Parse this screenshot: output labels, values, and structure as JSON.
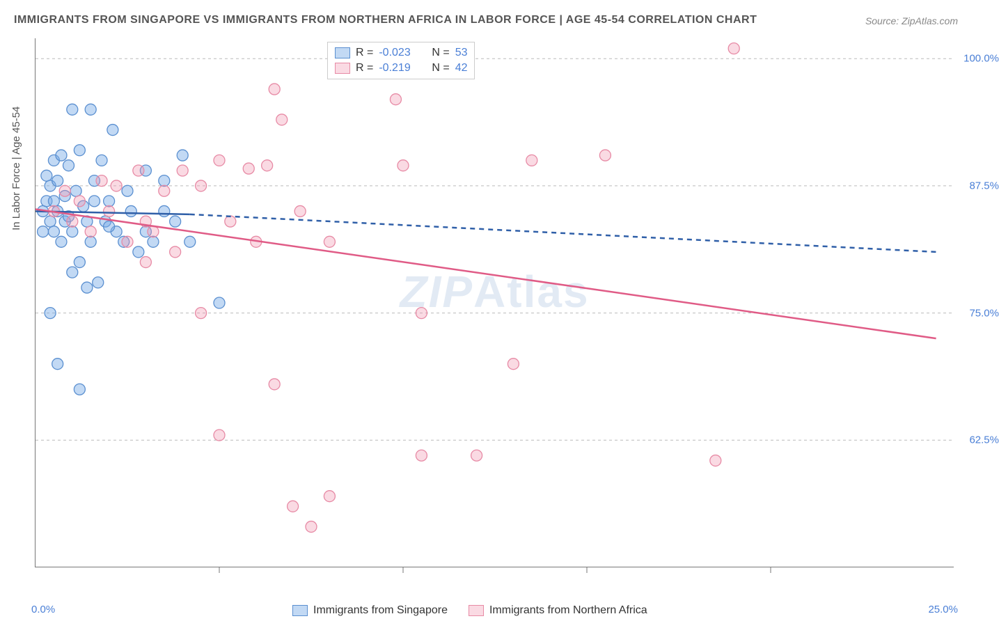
{
  "title": "IMMIGRANTS FROM SINGAPORE VS IMMIGRANTS FROM NORTHERN AFRICA IN LABOR FORCE | AGE 45-54 CORRELATION CHART",
  "source": "Source: ZipAtlas.com",
  "ylabel": "In Labor Force | Age 45-54",
  "watermark_a": "ZIP",
  "watermark_b": "Atlas",
  "title_fontsize": 16,
  "source_fontsize": 14,
  "colors": {
    "blue_fill": "rgba(120,170,230,0.45)",
    "blue_stroke": "#5a8fd0",
    "pink_fill": "rgba(240,150,175,0.35)",
    "pink_stroke": "#e78aa5",
    "line_blue": "#2f5fa8",
    "line_pink": "#e05b86",
    "axis_text": "#4a7fd6"
  },
  "chart": {
    "type": "scatter",
    "xlim": [
      0,
      25
    ],
    "ylim": [
      50,
      102
    ],
    "xticks": [
      5,
      10,
      15,
      20
    ],
    "yticks": [
      62.5,
      75.0,
      87.5,
      100.0
    ],
    "ytick_labels": [
      "62.5%",
      "75.0%",
      "87.5%",
      "100.0%"
    ],
    "xlabel_min": "0.0%",
    "xlabel_max": "25.0%",
    "marker_radius": 8,
    "series": [
      {
        "name": "Immigrants from Singapore",
        "color_key": "blue",
        "R": "-0.023",
        "N": "53",
        "regression": {
          "x1": 0,
          "y1": 85.0,
          "x2": 4.2,
          "y2": 84.7,
          "dash_ext_x2": 24.5,
          "dash_ext_y2": 81.0
        },
        "points": [
          [
            0.2,
            85
          ],
          [
            0.3,
            86
          ],
          [
            0.4,
            84
          ],
          [
            0.4,
            87.5
          ],
          [
            0.5,
            90
          ],
          [
            0.5,
            83
          ],
          [
            0.6,
            88
          ],
          [
            0.6,
            85
          ],
          [
            0.7,
            82
          ],
          [
            0.7,
            90.5
          ],
          [
            0.8,
            86.5
          ],
          [
            0.8,
            84
          ],
          [
            0.9,
            89.5
          ],
          [
            1.0,
            95
          ],
          [
            1.0,
            83
          ],
          [
            1.1,
            87
          ],
          [
            1.2,
            91
          ],
          [
            1.2,
            80
          ],
          [
            1.3,
            85.5
          ],
          [
            1.4,
            84
          ],
          [
            1.5,
            95
          ],
          [
            1.5,
            82
          ],
          [
            1.6,
            88
          ],
          [
            1.7,
            78
          ],
          [
            1.8,
            90
          ],
          [
            1.9,
            84
          ],
          [
            2.0,
            86
          ],
          [
            2.1,
            93
          ],
          [
            2.2,
            83
          ],
          [
            2.4,
            82
          ],
          [
            2.6,
            85
          ],
          [
            2.8,
            81
          ],
          [
            3.0,
            89
          ],
          [
            3.2,
            82
          ],
          [
            3.5,
            88
          ],
          [
            3.8,
            84
          ],
          [
            4.0,
            90.5
          ],
          [
            4.2,
            82
          ],
          [
            0.4,
            75
          ],
          [
            0.6,
            70
          ],
          [
            1.2,
            67.5
          ],
          [
            1.4,
            77.5
          ],
          [
            1.0,
            79
          ],
          [
            0.3,
            88.5
          ],
          [
            0.5,
            86
          ],
          [
            0.9,
            84.5
          ],
          [
            1.6,
            86
          ],
          [
            2.0,
            83.5
          ],
          [
            2.5,
            87
          ],
          [
            3.0,
            83
          ],
          [
            3.5,
            85
          ],
          [
            5.0,
            76
          ],
          [
            0.2,
            83
          ]
        ]
      },
      {
        "name": "Immigrants from Northern Africa",
        "color_key": "pink",
        "R": "-0.219",
        "N": "42",
        "regression": {
          "x1": 0,
          "y1": 85.2,
          "x2": 24.5,
          "y2": 72.5
        },
        "points": [
          [
            0.5,
            85
          ],
          [
            0.8,
            87
          ],
          [
            1.0,
            84
          ],
          [
            1.2,
            86
          ],
          [
            1.5,
            83
          ],
          [
            1.8,
            88
          ],
          [
            2.0,
            85
          ],
          [
            2.2,
            87.5
          ],
          [
            2.5,
            82
          ],
          [
            2.8,
            89
          ],
          [
            3.0,
            84
          ],
          [
            3.2,
            83
          ],
          [
            3.5,
            87
          ],
          [
            3.8,
            81
          ],
          [
            4.0,
            89
          ],
          [
            4.5,
            87.5
          ],
          [
            5.0,
            90
          ],
          [
            5.3,
            84
          ],
          [
            5.8,
            89.2
          ],
          [
            6.0,
            82
          ],
          [
            6.3,
            89.5
          ],
          [
            6.5,
            97
          ],
          [
            6.7,
            94
          ],
          [
            7.2,
            85
          ],
          [
            8.0,
            82
          ],
          [
            9.8,
            96
          ],
          [
            10.0,
            89.5
          ],
          [
            10.5,
            75
          ],
          [
            13.5,
            90
          ],
          [
            15.5,
            90.5
          ],
          [
            19.0,
            101
          ],
          [
            5.0,
            63
          ],
          [
            6.5,
            68
          ],
          [
            7.0,
            56
          ],
          [
            7.5,
            54
          ],
          [
            8.0,
            57
          ],
          [
            10.5,
            61
          ],
          [
            12.0,
            61
          ],
          [
            13.0,
            70
          ],
          [
            18.5,
            60.5
          ],
          [
            4.5,
            75
          ],
          [
            3.0,
            80
          ]
        ]
      }
    ]
  },
  "legend_top": {
    "rows": [
      {
        "series": 0,
        "r_lbl": "R =",
        "n_lbl": "N ="
      },
      {
        "series": 1,
        "r_lbl": "R =",
        "n_lbl": "N ="
      }
    ]
  }
}
